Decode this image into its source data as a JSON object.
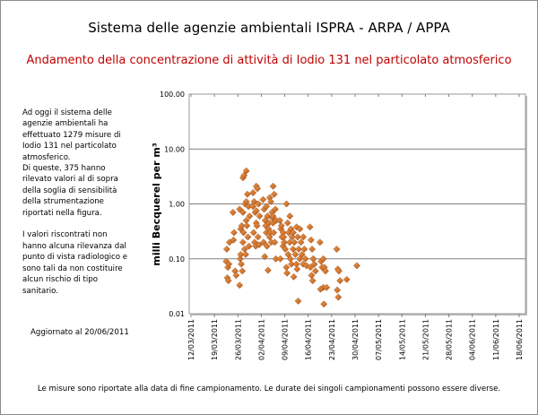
{
  "header": {
    "title": "Sistema delle agenzie ambientali ISPRA - ARPA / APPA",
    "subtitle": "Andamento della concentrazione di attività di Iodio 131 nel particolato atmosferico"
  },
  "side_text": "Ad oggi il sistema delle\nagenzie ambientali  ha\neffettuato 1279 misure di\nIodio 131 nel particolato\natmosferico.\nDi queste, 375 hanno\nrilevato valori al di sopra\ndella soglia di sensibilità\ndella strumentazione\nriportati nella figura.\n\nI valori riscontrati  non\nhanno alcuna rilevanza dal\npunto di vista radiologico e\nsono tali da non costituire\nalcun rischio di tipo\nsanitario.",
  "updated": "Aggiornato al 20/06/2011",
  "footer": "Le misure sono riportate alla data di fine campionamento. Le durate dei singoli campionamenti possono essere diverse.",
  "chart_data": {
    "type": "scatter",
    "ylabel": "milli Becquerel per m³",
    "yscale": "log",
    "ylim": [
      0.01,
      100
    ],
    "yticks": [
      "100.00",
      "10.00",
      "1.00",
      "0.10",
      "0.01"
    ],
    "xlim": [
      "12/03/2011",
      "18/06/2011"
    ],
    "xticks": [
      "12/03/2011",
      "19/03/2011",
      "26/03/2011",
      "02/04/2011",
      "09/04/2011",
      "16/04/2011",
      "23/04/2011",
      "30/04/2011",
      "07/05/2011",
      "14/05/2011",
      "21/05/2011",
      "28/05/2011",
      "04/06/2011",
      "11/06/2011",
      "18/06/2011"
    ],
    "grid": "horizontal",
    "marker_color": "#d9731f",
    "points": [
      {
        "date": "23/03/2011",
        "values": [
          0.09,
          0.045,
          0.04,
          0.2,
          0.15,
          0.07,
          0.08
        ]
      },
      {
        "date": "25/03/2011",
        "values": [
          0.7,
          0.3,
          0.06,
          0.05,
          0.22
        ]
      },
      {
        "date": "27/03/2011",
        "values": [
          0.8,
          0.35,
          0.4,
          0.2,
          0.1,
          0.08,
          0.06,
          0.033,
          0.12
        ]
      },
      {
        "date": "28/03/2011",
        "values": [
          3.0,
          3.3,
          1.0,
          0.5,
          0.3,
          0.15,
          0.12,
          0.7
        ]
      },
      {
        "date": "29/03/2011",
        "values": [
          4.0,
          1.5,
          0.9,
          0.6,
          0.4,
          0.25,
          0.17,
          1.1
        ]
      },
      {
        "date": "31/03/2011",
        "values": [
          1.6,
          1.1,
          0.7,
          0.45,
          0.3,
          0.2,
          0.17,
          0.9
        ]
      },
      {
        "date": "01/04/2011",
        "values": [
          2.1,
          1.9,
          1.0,
          0.6,
          0.4,
          0.25,
          0.18,
          0.75
        ]
      },
      {
        "date": "03/04/2011",
        "values": [
          1.2,
          0.8,
          0.5,
          0.3,
          0.2,
          0.11,
          0.4
        ]
      },
      {
        "date": "04/04/2011",
        "values": [
          0.9,
          0.6,
          0.35,
          0.25,
          0.17,
          0.062,
          0.45
        ]
      },
      {
        "date": "05/04/2011",
        "values": [
          1.3,
          1.1,
          0.7,
          0.45,
          0.3,
          0.2,
          0.55
        ]
      },
      {
        "date": "06/04/2011",
        "values": [
          2.1,
          1.5,
          0.8,
          0.5,
          0.3,
          0.2,
          0.1,
          0.6
        ]
      },
      {
        "date": "08/04/2011",
        "values": [
          0.5,
          0.35,
          0.25,
          0.17,
          0.1,
          0.4
        ]
      },
      {
        "date": "09/04/2011",
        "values": [
          0.3,
          0.2,
          0.15,
          0.07,
          0.25
        ]
      },
      {
        "date": "10/04/2011",
        "values": [
          1.0,
          0.45,
          0.3,
          0.2,
          0.055,
          0.12
        ]
      },
      {
        "date": "11/04/2011",
        "values": [
          0.6,
          0.35,
          0.25,
          0.15,
          0.1,
          0.08
        ]
      },
      {
        "date": "12/04/2011",
        "values": [
          0.3,
          0.2,
          0.12,
          0.08,
          0.047
        ]
      },
      {
        "date": "13/04/2011",
        "values": [
          0.38,
          0.25,
          0.15,
          0.1,
          0.065,
          0.017
        ]
      },
      {
        "date": "14/04/2011",
        "values": [
          0.35,
          0.2,
          0.12,
          0.08
        ]
      },
      {
        "date": "15/04/2011",
        "values": [
          0.25,
          0.15,
          0.1,
          0.075
        ]
      },
      {
        "date": "17/04/2011",
        "values": [
          0.38,
          0.22,
          0.15,
          0.1,
          0.07,
          0.05,
          0.04
        ]
      },
      {
        "date": "18/04/2011",
        "values": [
          0.1,
          0.08,
          0.06
        ]
      },
      {
        "date": "20/04/2011",
        "values": [
          0.2,
          0.09,
          0.07,
          0.03,
          0.028
        ]
      },
      {
        "date": "21/04/2011",
        "values": [
          0.1,
          0.07,
          0.06,
          0.03,
          0.015
        ]
      },
      {
        "date": "25/04/2011",
        "values": [
          0.15,
          0.065,
          0.06,
          0.04,
          0.027,
          0.02
        ]
      },
      {
        "date": "28/04/2011",
        "values": [
          0.042
        ]
      },
      {
        "date": "01/05/2011",
        "values": [
          0.075
        ]
      }
    ]
  }
}
